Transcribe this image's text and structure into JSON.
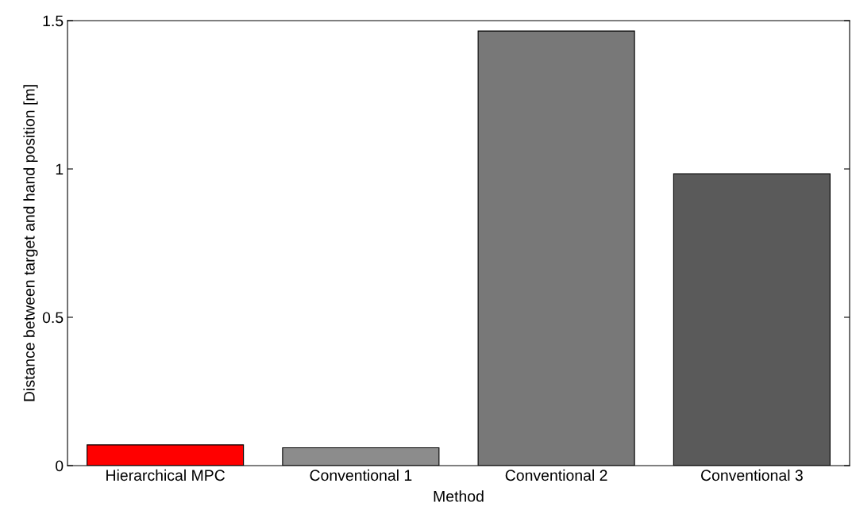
{
  "chart_data": {
    "type": "bar",
    "xlabel": "Method",
    "ylabel": "Distance between target and hand position [m]",
    "categories": [
      "Hierarchical MPC",
      "Conventional 1",
      "Conventional 2",
      "Conventional 3"
    ],
    "values": [
      0.07,
      0.06,
      1.465,
      0.984
    ],
    "colors": [
      "#ff0000",
      "#8c8c8c",
      "#787878",
      "#5a5a5a"
    ],
    "ylim": [
      0,
      1.5
    ],
    "yticks": [
      0,
      0.5,
      1,
      1.5
    ],
    "grid": false
  }
}
